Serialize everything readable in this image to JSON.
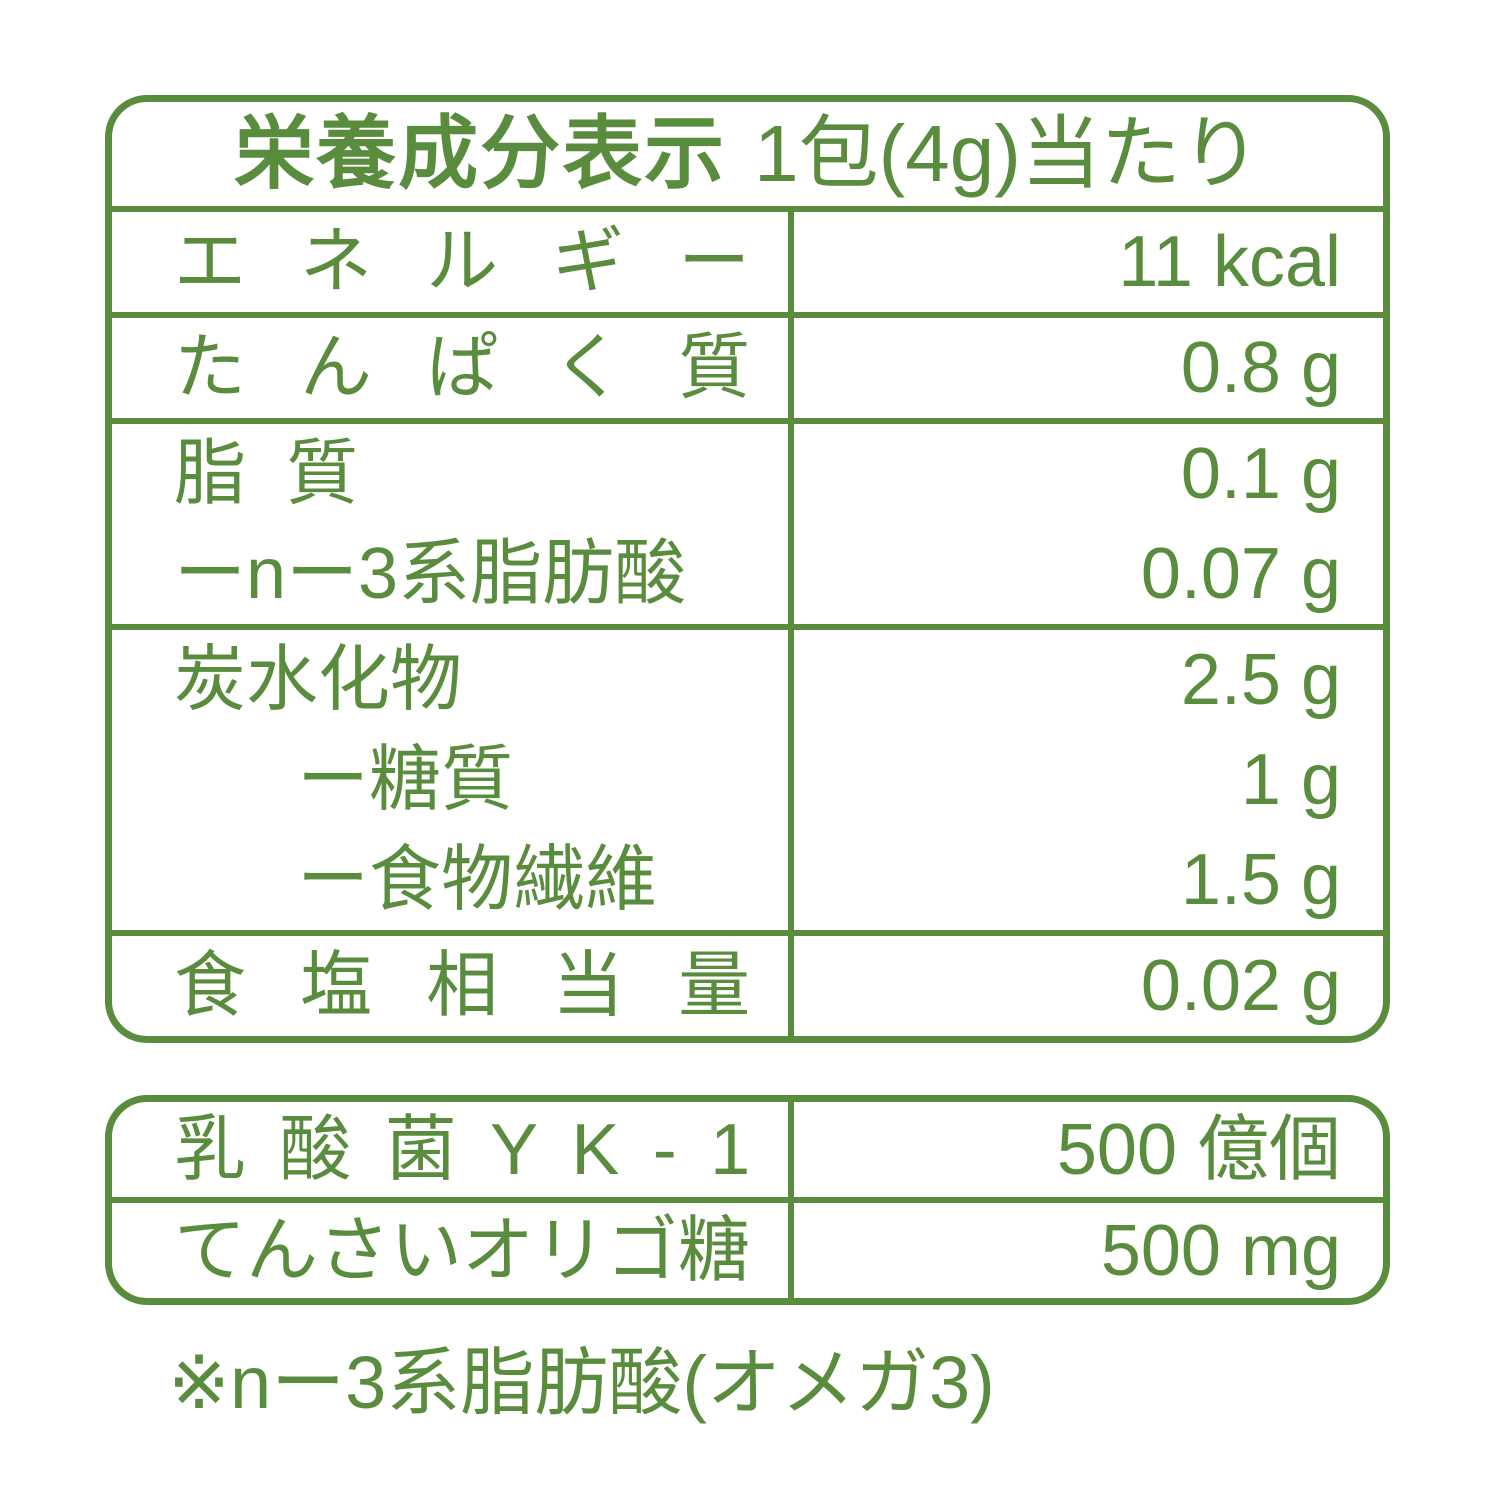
{
  "colors": {
    "accent_green": "#5a8c3e",
    "background": "#ffffff"
  },
  "header": {
    "title": "栄養成分表示",
    "serving": "1包(4g)当たり"
  },
  "nutrition_table": {
    "rows": [
      {
        "label": "エネルギー",
        "value": "11 kcal"
      },
      {
        "label": "たんぱく質",
        "value": "0.8 g"
      },
      {
        "label": "脂  質",
        "value": "0.1 g"
      },
      {
        "label": "ーnー3系脂肪酸",
        "value": "0.07 g"
      },
      {
        "label": "炭水化物",
        "value": "2.5 g"
      },
      {
        "label": "ー糖質",
        "value": "1 g"
      },
      {
        "label": "ー食物繊維",
        "value": "1.5 g"
      },
      {
        "label": "食塩相当量",
        "value": "0.02 g"
      }
    ]
  },
  "supplement_table": {
    "rows": [
      {
        "label": "乳酸菌YK-1",
        "value": "500 億個"
      },
      {
        "label": "てんさいオリゴ糖",
        "value": "500 mg"
      }
    ]
  },
  "footnote": "※nー3系脂肪酸(オメガ3)"
}
